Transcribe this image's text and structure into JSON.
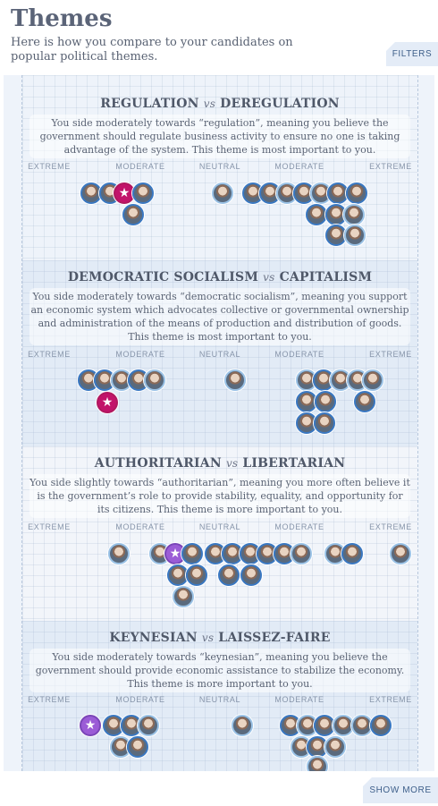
{
  "header": {
    "title": "Themes",
    "subtitle": "Here is how you compare to your candidates on popular political themes.",
    "filters_label": "FILTERS"
  },
  "axis_labels": [
    "EXTREME",
    "MODERATE",
    "NEUTRAL",
    "MODERATE",
    "EXTREME"
  ],
  "themes": [
    {
      "left": "REGULATION",
      "vs": "vs",
      "right": "DEREGULATION",
      "description": "You side moderately towards “regulation”, meaning you believe the government should regulate business activity to ensure no one is taking advantage of the system. This theme is most important to you."
    },
    {
      "left": "DEMOCRATIC SOCIALISM",
      "vs": "vs",
      "right": "CAPITALISM",
      "description": "You side moderately towards “democratic socialism”, meaning you support an economic system which advocates collective or governmental ownership and administration of the means of production and distribution of goods. This theme is most important to you."
    },
    {
      "left": "AUTHORITARIAN",
      "vs": "vs",
      "right": "LIBERTARIAN",
      "description": "You side slightly towards “authoritarian”, meaning you more often believe it is the government’s role to provide stability, equality, and opportunity for its citizens. This theme is more important to you."
    },
    {
      "left": "KEYNESIAN",
      "vs": "vs",
      "right": "LAISSEZ-FAIRE",
      "description": "You side moderately towards “keynesian”, meaning you believe the government should provide economic assistance to stabilize the economy. This theme is more important to you."
    }
  ],
  "you_marker_icon": "star-icon",
  "you_marker_symbol": "★",
  "colors": {
    "you_regulation": "#c2136a",
    "you_other": "#9b5cd6",
    "accent": "#3a78c2"
  },
  "footer": {
    "show_more_label": "SHOW MORE"
  }
}
